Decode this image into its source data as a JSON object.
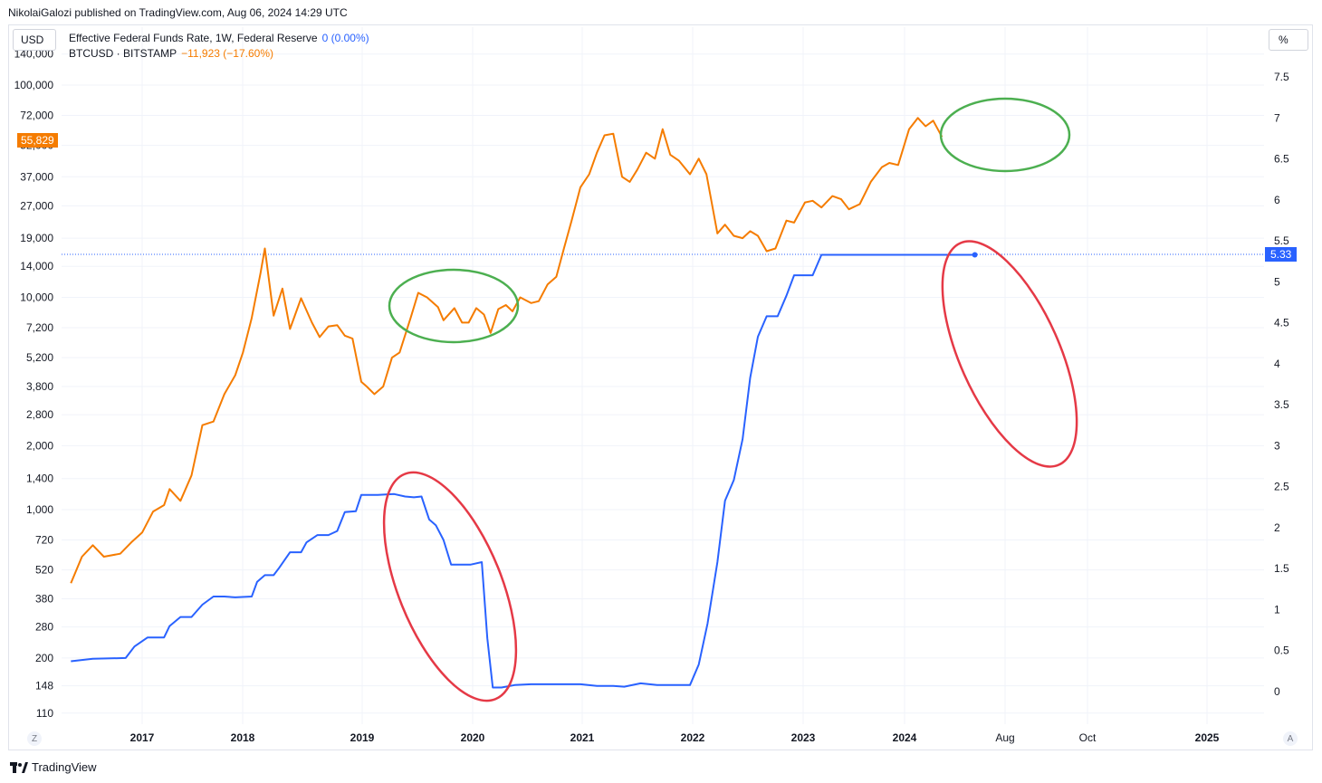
{
  "publisher": "NikolaiGalozi published on TradingView.com, Aug 06, 2024 14:29 UTC",
  "left_currency": "USD",
  "right_unit": "%",
  "brand": "TradingView",
  "z_button": "Z",
  "a_button": "A",
  "legend": {
    "series1_label": "Effective Federal Funds Rate, 1W, Federal Reserve",
    "series1_change": "0 (0.00%)",
    "series2_label": "BTCUSD · BITSTAMP",
    "series2_change": "−11,923 (−17.60%)"
  },
  "badges": {
    "btc_last": "55,829",
    "rate_last": "5.33"
  },
  "colors": {
    "btc": "#f57c00",
    "rate": "#2962ff",
    "green_circle": "#4caf50",
    "red_circle": "#e53946"
  },
  "chart_data": {
    "type": "line",
    "x_ticks": [
      "2017",
      "2018",
      "2019",
      "2020",
      "2021",
      "2022",
      "2023",
      "2024",
      "Aug",
      "Oct",
      "2025"
    ],
    "left_axis_ticks": [
      "140,000",
      "100,000",
      "72,000",
      "52,000",
      "37,000",
      "27,000",
      "19,000",
      "14,000",
      "10,000",
      "7,200",
      "5,200",
      "3,800",
      "2,800",
      "2,000",
      "1,400",
      "1,000",
      "720",
      "520",
      "380",
      "280",
      "200",
      "148",
      "110"
    ],
    "right_axis_ticks": [
      "7.5",
      "7",
      "6.5",
      "6",
      "5.5",
      "5",
      "4.5",
      "4",
      "3.5",
      "3",
      "2.5",
      "2",
      "1.5",
      "1",
      "0.5",
      "0"
    ],
    "left_scale": "log",
    "series": [
      {
        "name": "BTCUSD · BITSTAMP",
        "axis": "left",
        "points": [
          [
            2016.35,
            450
          ],
          [
            2016.45,
            600
          ],
          [
            2016.55,
            680
          ],
          [
            2016.65,
            600
          ],
          [
            2016.8,
            620
          ],
          [
            2016.9,
            700
          ],
          [
            2017.0,
            780
          ],
          [
            2017.1,
            980
          ],
          [
            2017.2,
            1050
          ],
          [
            2017.25,
            1250
          ],
          [
            2017.35,
            1100
          ],
          [
            2017.45,
            1450
          ],
          [
            2017.55,
            2500
          ],
          [
            2017.65,
            2600
          ],
          [
            2017.75,
            3500
          ],
          [
            2017.85,
            4300
          ],
          [
            2017.92,
            5500
          ],
          [
            2018.0,
            8000
          ],
          [
            2018.08,
            13000
          ],
          [
            2018.12,
            17000
          ],
          [
            2018.2,
            8200
          ],
          [
            2018.28,
            11000
          ],
          [
            2018.35,
            7100
          ],
          [
            2018.45,
            9900
          ],
          [
            2018.55,
            7600
          ],
          [
            2018.62,
            6500
          ],
          [
            2018.7,
            7300
          ],
          [
            2018.78,
            7400
          ],
          [
            2018.85,
            6600
          ],
          [
            2018.92,
            6400
          ],
          [
            2019.0,
            4000
          ],
          [
            2019.05,
            3800
          ],
          [
            2019.12,
            3500
          ],
          [
            2019.2,
            3800
          ],
          [
            2019.28,
            5200
          ],
          [
            2019.35,
            5500
          ],
          [
            2019.45,
            8000
          ],
          [
            2019.52,
            10500
          ],
          [
            2019.6,
            10000
          ],
          [
            2019.7,
            9000
          ],
          [
            2019.75,
            7800
          ],
          [
            2019.85,
            8900
          ],
          [
            2019.92,
            7600
          ],
          [
            2019.98,
            7600
          ],
          [
            2020.05,
            8900
          ],
          [
            2020.12,
            8300
          ],
          [
            2020.18,
            6800
          ],
          [
            2020.25,
            8800
          ],
          [
            2020.32,
            9200
          ],
          [
            2020.38,
            8600
          ],
          [
            2020.45,
            10000
          ],
          [
            2020.55,
            9400
          ],
          [
            2020.62,
            9600
          ],
          [
            2020.7,
            11500
          ],
          [
            2020.78,
            12500
          ],
          [
            2020.85,
            17000
          ],
          [
            2020.92,
            23000
          ],
          [
            2021.0,
            33000
          ],
          [
            2021.08,
            38000
          ],
          [
            2021.15,
            48000
          ],
          [
            2021.22,
            58000
          ],
          [
            2021.3,
            59000
          ],
          [
            2021.38,
            37000
          ],
          [
            2021.45,
            35000
          ],
          [
            2021.52,
            40000
          ],
          [
            2021.6,
            48000
          ],
          [
            2021.68,
            45000
          ],
          [
            2021.75,
            62000
          ],
          [
            2021.82,
            47000
          ],
          [
            2021.9,
            44000
          ],
          [
            2022.0,
            38000
          ],
          [
            2022.08,
            45000
          ],
          [
            2022.15,
            38000
          ],
          [
            2022.25,
            20000
          ],
          [
            2022.32,
            22000
          ],
          [
            2022.4,
            19500
          ],
          [
            2022.48,
            19000
          ],
          [
            2022.55,
            20500
          ],
          [
            2022.62,
            19500
          ],
          [
            2022.7,
            16500
          ],
          [
            2022.78,
            17000
          ],
          [
            2022.88,
            23000
          ],
          [
            2022.95,
            22500
          ],
          [
            2023.05,
            28000
          ],
          [
            2023.12,
            28500
          ],
          [
            2023.2,
            26500
          ],
          [
            2023.3,
            30000
          ],
          [
            2023.38,
            29000
          ],
          [
            2023.45,
            26000
          ],
          [
            2023.55,
            27500
          ],
          [
            2023.65,
            35000
          ],
          [
            2023.75,
            41000
          ],
          [
            2023.82,
            43000
          ],
          [
            2023.9,
            42000
          ],
          [
            2024.0,
            62000
          ],
          [
            2024.08,
            70000
          ],
          [
            2024.15,
            64000
          ],
          [
            2024.22,
            68000
          ],
          [
            2024.3,
            57000
          ]
        ]
      },
      {
        "name": "Effective Federal Funds Rate, 1W, Federal Reserve",
        "axis": "right",
        "points": [
          [
            2016.35,
            0.37
          ],
          [
            2016.55,
            0.4
          ],
          [
            2016.85,
            0.41
          ],
          [
            2016.93,
            0.55
          ],
          [
            2017.05,
            0.66
          ],
          [
            2017.2,
            0.66
          ],
          [
            2017.25,
            0.8
          ],
          [
            2017.35,
            0.91
          ],
          [
            2017.45,
            0.91
          ],
          [
            2017.55,
            1.06
          ],
          [
            2017.65,
            1.16
          ],
          [
            2017.75,
            1.16
          ],
          [
            2017.85,
            1.15
          ],
          [
            2018.0,
            1.16
          ],
          [
            2018.05,
            1.34
          ],
          [
            2018.12,
            1.42
          ],
          [
            2018.2,
            1.42
          ],
          [
            2018.25,
            1.51
          ],
          [
            2018.35,
            1.7
          ],
          [
            2018.45,
            1.7
          ],
          [
            2018.5,
            1.82
          ],
          [
            2018.6,
            1.91
          ],
          [
            2018.7,
            1.91
          ],
          [
            2018.78,
            1.96
          ],
          [
            2018.85,
            2.19
          ],
          [
            2018.95,
            2.2
          ],
          [
            2019.0,
            2.4
          ],
          [
            2019.15,
            2.4
          ],
          [
            2019.3,
            2.41
          ],
          [
            2019.4,
            2.38
          ],
          [
            2019.48,
            2.37
          ],
          [
            2019.55,
            2.38
          ],
          [
            2019.62,
            2.1
          ],
          [
            2019.68,
            2.03
          ],
          [
            2019.75,
            1.85
          ],
          [
            2019.82,
            1.55
          ],
          [
            2019.92,
            1.55
          ],
          [
            2020.0,
            1.55
          ],
          [
            2020.1,
            1.58
          ],
          [
            2020.15,
            0.65
          ],
          [
            2020.2,
            0.05
          ],
          [
            2020.28,
            0.05
          ],
          [
            2020.4,
            0.08
          ],
          [
            2020.55,
            0.09
          ],
          [
            2020.75,
            0.09
          ],
          [
            2021.0,
            0.09
          ],
          [
            2021.15,
            0.07
          ],
          [
            2021.3,
            0.07
          ],
          [
            2021.4,
            0.06
          ],
          [
            2021.55,
            0.1
          ],
          [
            2021.7,
            0.08
          ],
          [
            2021.85,
            0.08
          ],
          [
            2022.0,
            0.08
          ],
          [
            2022.08,
            0.33
          ],
          [
            2022.16,
            0.83
          ],
          [
            2022.25,
            1.58
          ],
          [
            2022.32,
            2.33
          ],
          [
            2022.4,
            2.58
          ],
          [
            2022.48,
            3.08
          ],
          [
            2022.55,
            3.83
          ],
          [
            2022.62,
            4.33
          ],
          [
            2022.7,
            4.58
          ],
          [
            2022.8,
            4.58
          ],
          [
            2022.88,
            4.83
          ],
          [
            2022.95,
            5.08
          ],
          [
            2023.05,
            5.08
          ],
          [
            2023.12,
            5.08
          ],
          [
            2023.2,
            5.33
          ],
          [
            2023.4,
            5.33
          ],
          [
            2023.65,
            5.33
          ],
          [
            2023.9,
            5.33
          ],
          [
            2024.1,
            5.33
          ],
          [
            2024.3,
            5.33
          ],
          [
            2024.6,
            5.33
          ]
        ]
      }
    ]
  }
}
